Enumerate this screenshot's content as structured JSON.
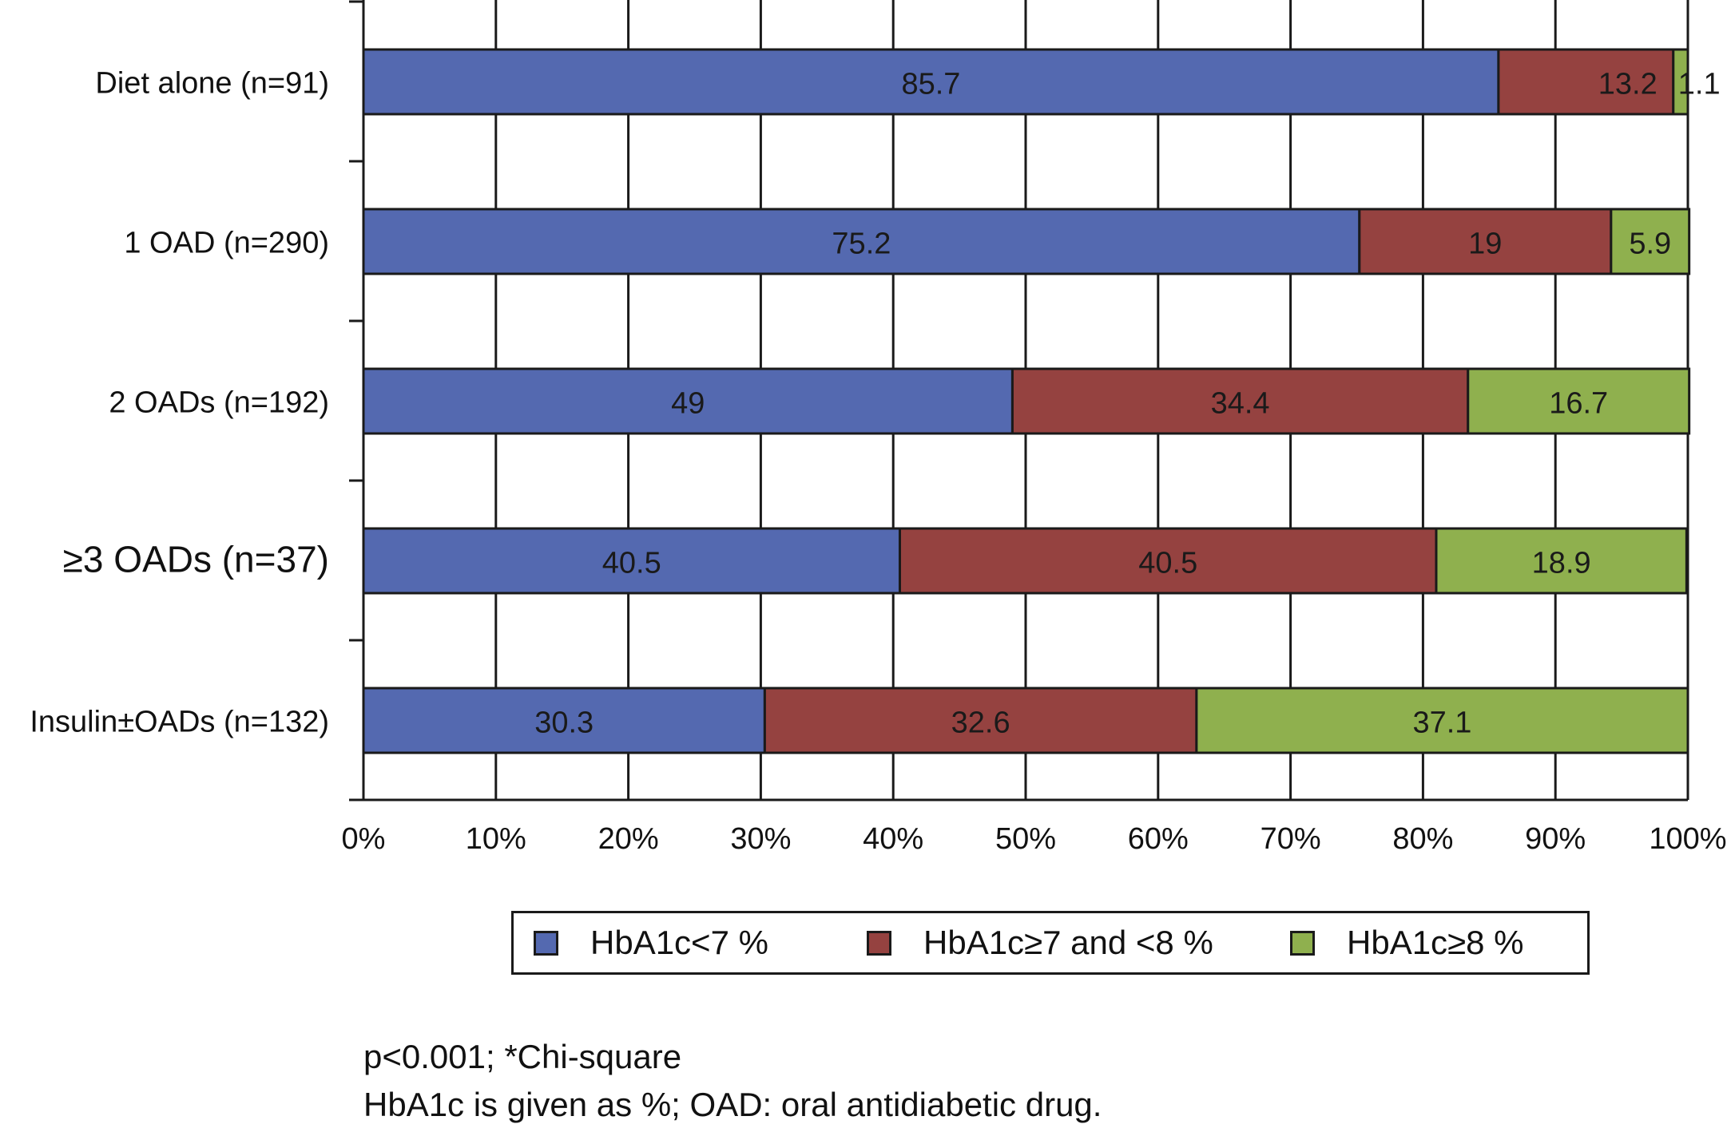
{
  "chart_data": {
    "type": "bar",
    "orientation": "horizontal",
    "stacked": true,
    "categories": [
      "Diet alone (n=91)",
      "1 OAD (n=290)",
      "2 OADs (n=192)",
      "≥3 OADs (n=37)",
      "Insulin±OADs (n=132)"
    ],
    "series": [
      {
        "name": "HbA1c<7 %",
        "color": "#5469b0",
        "values": [
          85.7,
          75.2,
          49,
          40.5,
          30.3
        ],
        "labels": [
          "85.7",
          "75.2",
          "49",
          "40.5",
          "30.3"
        ]
      },
      {
        "name": "HbA1c≥7 and <8 %",
        "color": "#954240",
        "values": [
          13.2,
          19,
          34.4,
          40.5,
          32.6
        ],
        "labels": [
          "13.2",
          "19",
          "34.4",
          "40.5",
          "32.6"
        ]
      },
      {
        "name": "HbA1c≥8 %",
        "color": "#8fb04e",
        "values": [
          1.1,
          5.9,
          16.7,
          18.9,
          37.1
        ],
        "labels": [
          "1.1",
          "5.9",
          "16.7",
          "18.9",
          "37.1"
        ]
      }
    ],
    "xlim": [
      0,
      100
    ],
    "xticks": [
      "0%",
      "10%",
      "20%",
      "30%",
      "40%",
      "50%",
      "60%",
      "70%",
      "80%",
      "90%",
      "100%"
    ],
    "grid": "vertical",
    "legend_position": "bottom"
  },
  "footnotes": {
    "line1": "p<0.001; *Chi-square",
    "line2": "HbA1c is given as %; OAD: oral antidiabetic drug."
  }
}
